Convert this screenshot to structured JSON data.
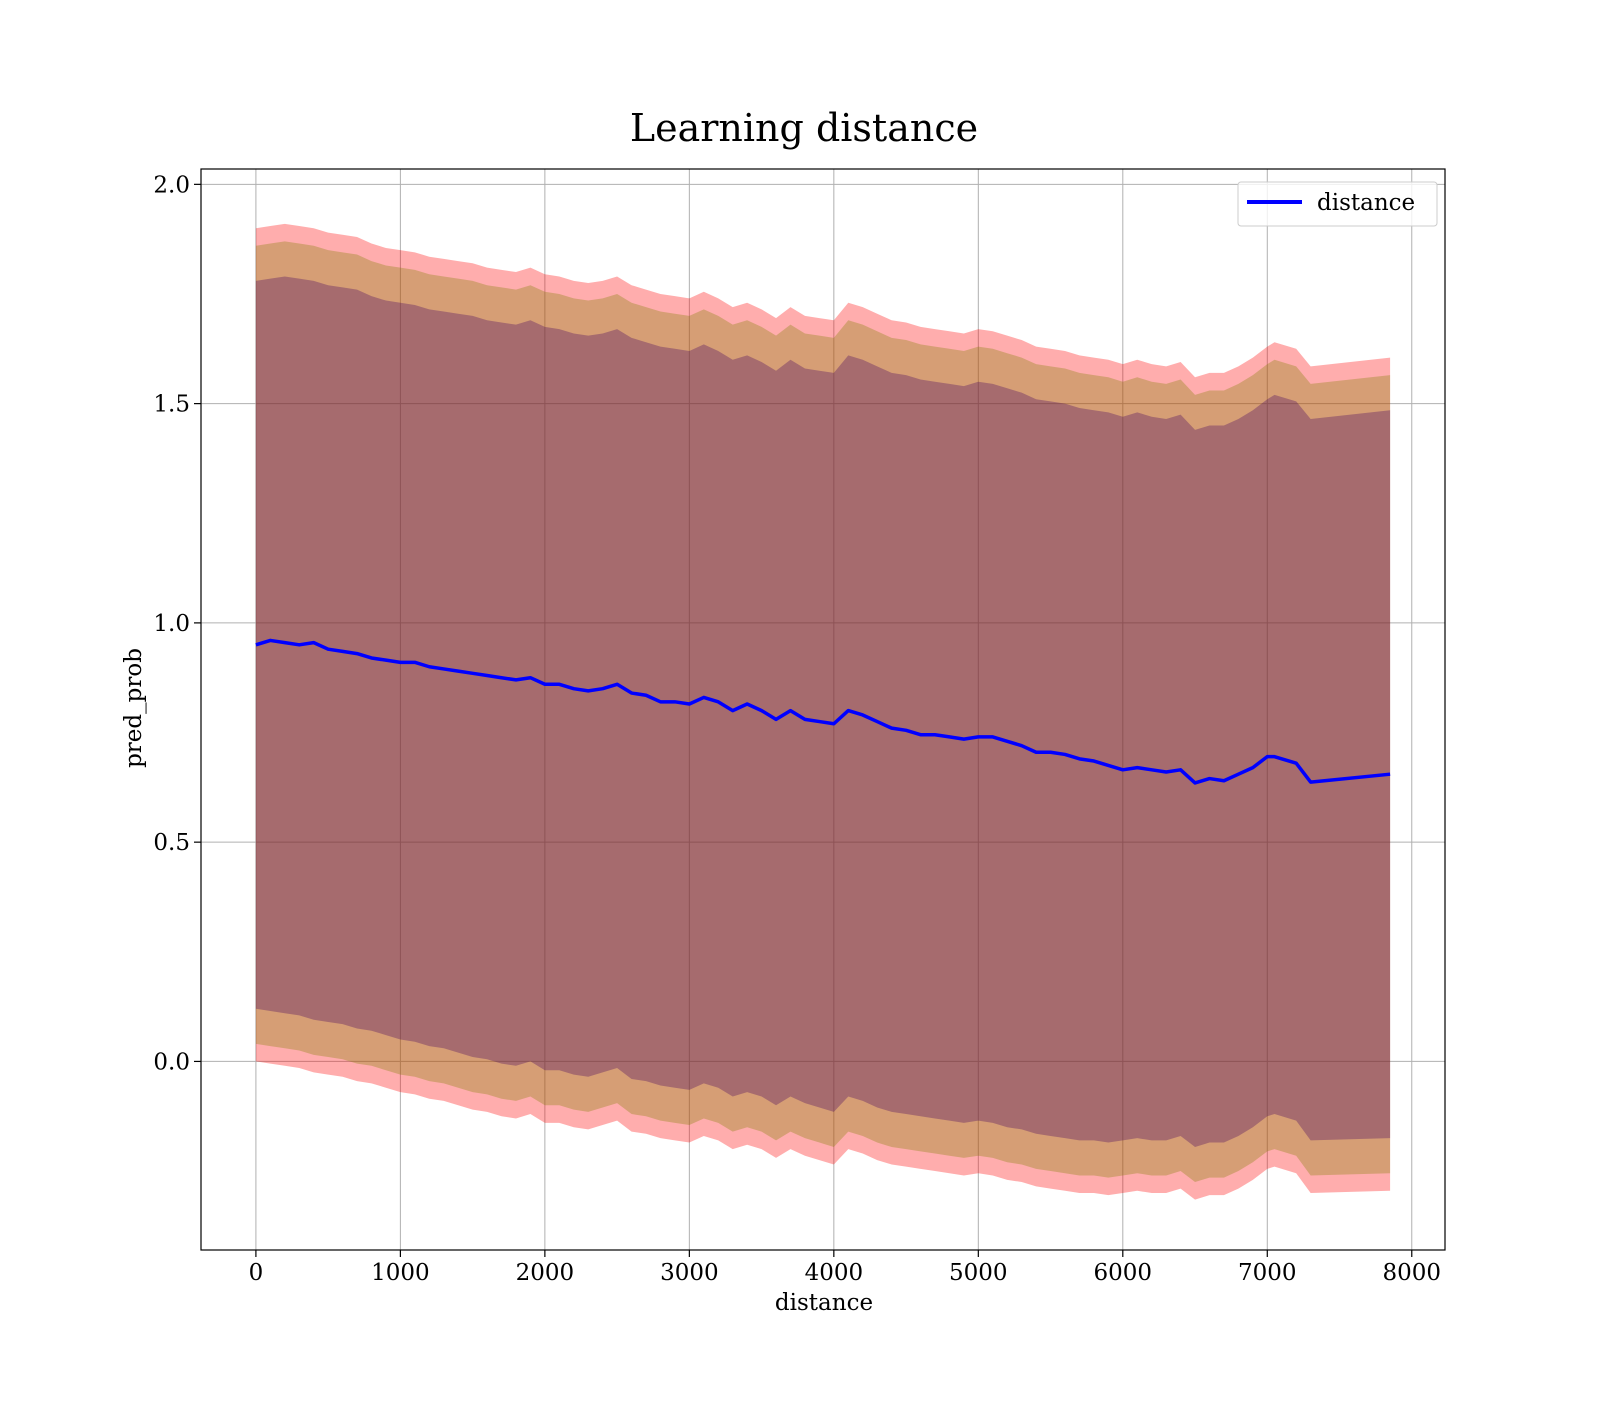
{
  "chart_data": {
    "type": "line",
    "title": "Learning distance",
    "xlabel": "distance",
    "ylabel": "pred_prob",
    "xlim": [
      -380,
      8230
    ],
    "ylim": [
      -0.43,
      2.035
    ],
    "xticks": [
      0,
      1000,
      2000,
      3000,
      4000,
      5000,
      6000,
      7000,
      8000
    ],
    "xtick_labels": [
      "0",
      "1000",
      "2000",
      "3000",
      "4000",
      "5000",
      "6000",
      "7000",
      "8000"
    ],
    "yticks": [
      0.0,
      0.5,
      1.0,
      1.5,
      2.0
    ],
    "ytick_labels": [
      "0.0",
      "0.5",
      "1.0",
      "1.5",
      "2.0"
    ],
    "grid": true,
    "legend": {
      "position": "top-right",
      "entries": [
        {
          "label": "distance",
          "color": "#0000ff"
        }
      ]
    },
    "series": [
      {
        "name": "distance",
        "color": "#0000ff",
        "x": [
          0,
          100,
          200,
          300,
          400,
          500,
          600,
          700,
          800,
          900,
          1000,
          1100,
          1200,
          1300,
          1400,
          1500,
          1600,
          1700,
          1800,
          1900,
          2000,
          2100,
          2200,
          2300,
          2400,
          2500,
          2600,
          2700,
          2800,
          2900,
          3000,
          3100,
          3200,
          3300,
          3400,
          3500,
          3600,
          3700,
          3800,
          3900,
          4000,
          4100,
          4200,
          4300,
          4400,
          4500,
          4600,
          4700,
          4800,
          4900,
          5000,
          5100,
          5200,
          5300,
          5400,
          5500,
          5600,
          5700,
          5800,
          5900,
          6000,
          6100,
          6200,
          6300,
          6400,
          6500,
          6600,
          6700,
          6800,
          6900,
          7000,
          7050,
          7200,
          7300,
          7850
        ],
        "y": [
          0.95,
          0.96,
          0.955,
          0.95,
          0.955,
          0.94,
          0.935,
          0.93,
          0.92,
          0.915,
          0.91,
          0.91,
          0.9,
          0.895,
          0.89,
          0.885,
          0.88,
          0.875,
          0.87,
          0.875,
          0.86,
          0.86,
          0.85,
          0.845,
          0.85,
          0.86,
          0.84,
          0.835,
          0.82,
          0.82,
          0.815,
          0.83,
          0.82,
          0.8,
          0.815,
          0.8,
          0.78,
          0.8,
          0.78,
          0.775,
          0.77,
          0.8,
          0.79,
          0.775,
          0.76,
          0.755,
          0.745,
          0.745,
          0.74,
          0.735,
          0.74,
          0.74,
          0.73,
          0.72,
          0.705,
          0.705,
          0.7,
          0.69,
          0.685,
          0.675,
          0.665,
          0.67,
          0.665,
          0.66,
          0.665,
          0.635,
          0.645,
          0.64,
          0.655,
          0.67,
          0.695,
          0.695,
          0.68,
          0.637,
          0.655
        ]
      }
    ],
    "bands": [
      {
        "color": "#ff0000",
        "opacity": 0.32,
        "upper": [
          1.9,
          1.905,
          1.91,
          1.905,
          1.9,
          1.89,
          1.885,
          1.88,
          1.865,
          1.855,
          1.85,
          1.845,
          1.835,
          1.83,
          1.825,
          1.82,
          1.81,
          1.805,
          1.8,
          1.81,
          1.795,
          1.79,
          1.78,
          1.775,
          1.78,
          1.79,
          1.77,
          1.76,
          1.75,
          1.745,
          1.74,
          1.755,
          1.74,
          1.72,
          1.73,
          1.715,
          1.695,
          1.72,
          1.7,
          1.695,
          1.69,
          1.73,
          1.72,
          1.705,
          1.69,
          1.685,
          1.675,
          1.67,
          1.665,
          1.66,
          1.67,
          1.665,
          1.655,
          1.645,
          1.63,
          1.625,
          1.62,
          1.61,
          1.605,
          1.6,
          1.59,
          1.6,
          1.59,
          1.585,
          1.595,
          1.56,
          1.57,
          1.57,
          1.585,
          1.605,
          1.63,
          1.64,
          1.625,
          1.585,
          1.605
        ],
        "lower": [
          0.0,
          -0.005,
          -0.01,
          -0.015,
          -0.025,
          -0.03,
          -0.035,
          -0.045,
          -0.05,
          -0.06,
          -0.07,
          -0.075,
          -0.085,
          -0.09,
          -0.1,
          -0.11,
          -0.115,
          -0.125,
          -0.13,
          -0.12,
          -0.14,
          -0.14,
          -0.15,
          -0.155,
          -0.145,
          -0.135,
          -0.16,
          -0.165,
          -0.175,
          -0.18,
          -0.185,
          -0.17,
          -0.18,
          -0.2,
          -0.19,
          -0.2,
          -0.22,
          -0.2,
          -0.215,
          -0.225,
          -0.235,
          -0.2,
          -0.21,
          -0.225,
          -0.235,
          -0.24,
          -0.245,
          -0.25,
          -0.255,
          -0.26,
          -0.255,
          -0.26,
          -0.27,
          -0.275,
          -0.285,
          -0.29,
          -0.295,
          -0.3,
          -0.3,
          -0.305,
          -0.3,
          -0.295,
          -0.3,
          -0.3,
          -0.29,
          -0.315,
          -0.305,
          -0.305,
          -0.29,
          -0.27,
          -0.245,
          -0.24,
          -0.255,
          -0.3,
          -0.295
        ]
      },
      {
        "color": "#808000",
        "opacity": 0.32,
        "upper": [
          1.86,
          1.865,
          1.87,
          1.865,
          1.86,
          1.85,
          1.845,
          1.84,
          1.825,
          1.815,
          1.81,
          1.805,
          1.795,
          1.79,
          1.785,
          1.78,
          1.77,
          1.765,
          1.76,
          1.77,
          1.755,
          1.75,
          1.74,
          1.735,
          1.74,
          1.75,
          1.73,
          1.72,
          1.71,
          1.705,
          1.7,
          1.715,
          1.7,
          1.68,
          1.69,
          1.675,
          1.655,
          1.68,
          1.66,
          1.655,
          1.65,
          1.69,
          1.68,
          1.665,
          1.65,
          1.645,
          1.635,
          1.63,
          1.625,
          1.62,
          1.63,
          1.625,
          1.615,
          1.605,
          1.59,
          1.585,
          1.58,
          1.57,
          1.565,
          1.56,
          1.55,
          1.56,
          1.55,
          1.545,
          1.555,
          1.52,
          1.53,
          1.53,
          1.545,
          1.565,
          1.59,
          1.6,
          1.585,
          1.545,
          1.565
        ],
        "lower": [
          0.04,
          0.035,
          0.03,
          0.025,
          0.015,
          0.01,
          0.005,
          -0.005,
          -0.01,
          -0.02,
          -0.03,
          -0.035,
          -0.045,
          -0.05,
          -0.06,
          -0.07,
          -0.075,
          -0.085,
          -0.09,
          -0.08,
          -0.1,
          -0.1,
          -0.11,
          -0.115,
          -0.105,
          -0.095,
          -0.12,
          -0.125,
          -0.135,
          -0.14,
          -0.145,
          -0.13,
          -0.14,
          -0.16,
          -0.15,
          -0.16,
          -0.18,
          -0.16,
          -0.175,
          -0.185,
          -0.195,
          -0.16,
          -0.17,
          -0.185,
          -0.195,
          -0.2,
          -0.205,
          -0.21,
          -0.215,
          -0.22,
          -0.215,
          -0.22,
          -0.23,
          -0.235,
          -0.245,
          -0.25,
          -0.255,
          -0.26,
          -0.26,
          -0.265,
          -0.26,
          -0.255,
          -0.26,
          -0.26,
          -0.25,
          -0.275,
          -0.265,
          -0.265,
          -0.25,
          -0.23,
          -0.205,
          -0.2,
          -0.215,
          -0.26,
          -0.255
        ]
      },
      {
        "color": "#400060",
        "opacity": 0.32,
        "upper": [
          1.78,
          1.785,
          1.79,
          1.785,
          1.78,
          1.77,
          1.765,
          1.76,
          1.745,
          1.735,
          1.73,
          1.725,
          1.715,
          1.71,
          1.705,
          1.7,
          1.69,
          1.685,
          1.68,
          1.69,
          1.675,
          1.67,
          1.66,
          1.655,
          1.66,
          1.67,
          1.65,
          1.64,
          1.63,
          1.625,
          1.62,
          1.635,
          1.62,
          1.6,
          1.61,
          1.595,
          1.575,
          1.6,
          1.58,
          1.575,
          1.57,
          1.61,
          1.6,
          1.585,
          1.57,
          1.565,
          1.555,
          1.55,
          1.545,
          1.54,
          1.55,
          1.545,
          1.535,
          1.525,
          1.51,
          1.505,
          1.5,
          1.49,
          1.485,
          1.48,
          1.47,
          1.48,
          1.47,
          1.465,
          1.475,
          1.44,
          1.45,
          1.45,
          1.465,
          1.485,
          1.51,
          1.52,
          1.505,
          1.465,
          1.485
        ],
        "lower": [
          0.12,
          0.115,
          0.11,
          0.105,
          0.095,
          0.09,
          0.085,
          0.075,
          0.07,
          0.06,
          0.05,
          0.045,
          0.035,
          0.03,
          0.02,
          0.01,
          0.005,
          -0.005,
          -0.01,
          0.0,
          -0.02,
          -0.02,
          -0.03,
          -0.035,
          -0.025,
          -0.015,
          -0.04,
          -0.045,
          -0.055,
          -0.06,
          -0.065,
          -0.05,
          -0.06,
          -0.08,
          -0.07,
          -0.08,
          -0.1,
          -0.08,
          -0.095,
          -0.105,
          -0.115,
          -0.08,
          -0.09,
          -0.105,
          -0.115,
          -0.12,
          -0.125,
          -0.13,
          -0.135,
          -0.14,
          -0.135,
          -0.14,
          -0.15,
          -0.155,
          -0.165,
          -0.17,
          -0.175,
          -0.18,
          -0.18,
          -0.185,
          -0.18,
          -0.175,
          -0.18,
          -0.18,
          -0.17,
          -0.195,
          -0.185,
          -0.185,
          -0.17,
          -0.15,
          -0.125,
          -0.12,
          -0.135,
          -0.18,
          -0.175
        ]
      }
    ]
  }
}
